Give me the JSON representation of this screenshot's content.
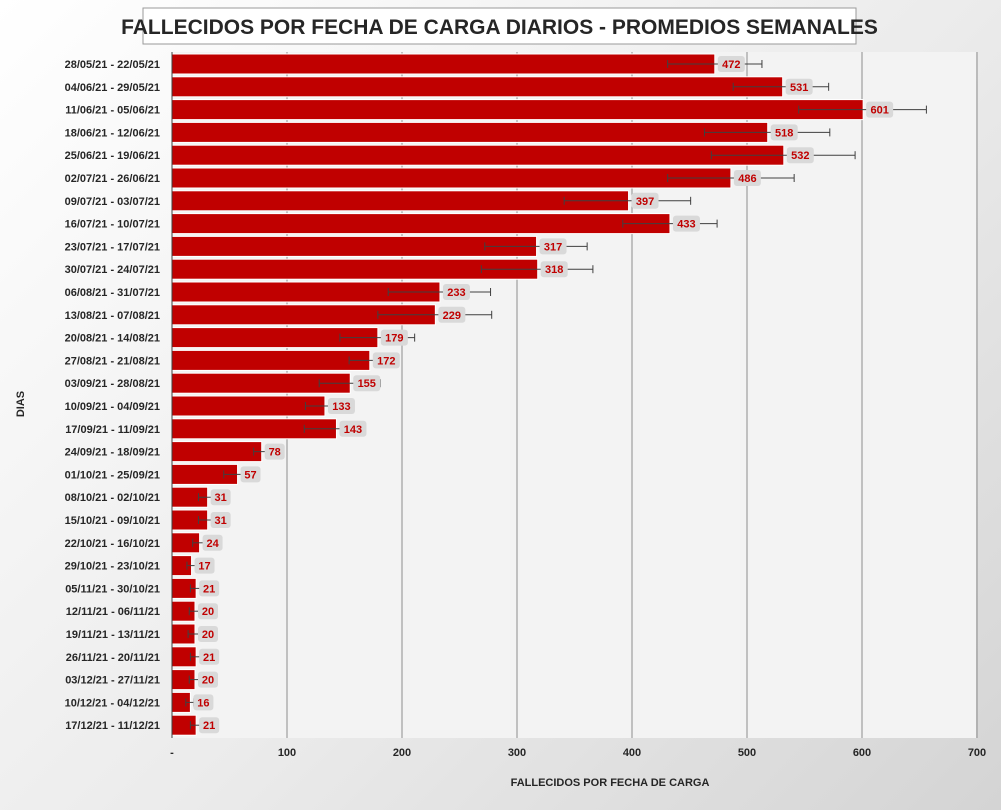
{
  "colors": {
    "bar": "#c00000",
    "data_label": "#c00000"
  },
  "chart_data": {
    "type": "bar",
    "orientation": "horizontal",
    "title": "FALLECIDOS POR FECHA DE CARGA DIARIOS - PROMEDIOS SEMANALES",
    "xlabel": "FALLECIDOS POR FECHA DE CARGA",
    "ylabel": "DIAS",
    "xlim": [
      0,
      700
    ],
    "xticks": [
      "-",
      "100",
      "200",
      "300",
      "400",
      "500",
      "600",
      "700"
    ],
    "grid": true,
    "legend": "none",
    "categories": [
      "28/05/21 - 22/05/21",
      "04/06/21 - 29/05/21",
      "11/06/21 - 05/06/21",
      "18/06/21 - 12/06/21",
      "25/06/21 - 19/06/21",
      "02/07/21 - 26/06/21",
      "09/07/21 - 03/07/21",
      "16/07/21 - 10/07/21",
      "23/07/21 - 17/07/21",
      "30/07/21 - 24/07/21",
      "06/08/21 - 31/07/21",
      "13/08/21 - 07/08/21",
      "20/08/21 - 14/08/21",
      "27/08/21 - 21/08/21",
      "03/09/21 - 28/08/21",
      "10/09/21 - 04/09/21",
      "17/09/21 - 11/09/21",
      "24/09/21 - 18/09/21",
      "01/10/21 - 25/09/21",
      "08/10/21 - 02/10/21",
      "15/10/21 - 09/10/21",
      "22/10/21 - 16/10/21",
      "29/10/21 - 23/10/21",
      "05/11/21 - 30/10/21",
      "12/11/21 - 06/11/21",
      "19/11/21 - 13/11/21",
      "26/11/21 - 20/11/21",
      "03/12/21 - 27/11/21",
      "10/12/21 - 04/12/21",
      "17/12/21 - 11/12/21"
    ],
    "values": [
      472,
      531,
      601,
      518,
      532,
      486,
      397,
      433,
      317,
      318,
      233,
      229,
      179,
      172,
      155,
      133,
      143,
      78,
      57,
      31,
      31,
      24,
      17,
      21,
      20,
      20,
      21,
      20,
      16,
      21
    ],
    "error_low": [
      431,
      488,
      545,
      463,
      469,
      431,
      341,
      392,
      272,
      269,
      188,
      179,
      146,
      154,
      128,
      116,
      115,
      71,
      45,
      23,
      23,
      18,
      13,
      16,
      15,
      14,
      16,
      15,
      12,
      16
    ],
    "error_high": [
      513,
      571,
      656,
      572,
      594,
      541,
      451,
      474,
      361,
      366,
      277,
      278,
      211,
      191,
      181,
      150,
      168,
      85,
      68,
      38,
      38,
      29,
      21,
      27,
      25,
      26,
      25,
      25,
      19,
      25
    ]
  }
}
